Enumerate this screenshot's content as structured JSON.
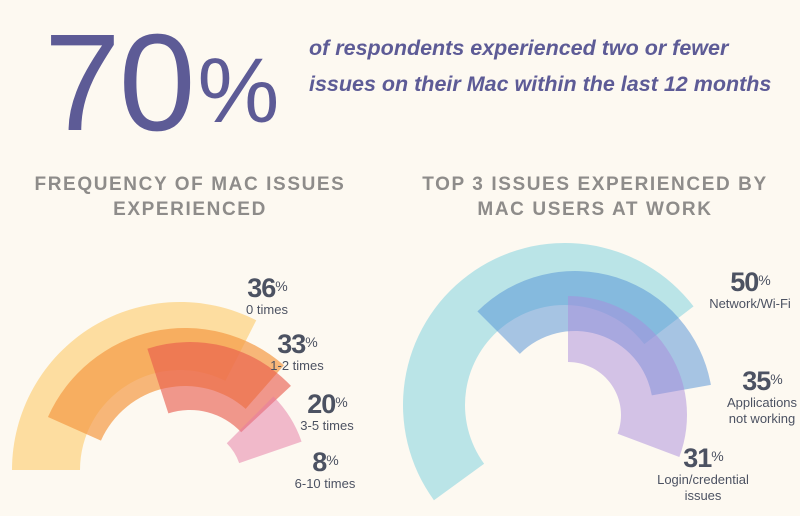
{
  "headline": {
    "value": "70",
    "unit": "%",
    "statement": "of respondents experienced two or fewer issues on their Mac within the last 12 months"
  },
  "colors": {
    "headline": "#5d5b96",
    "heading": "#8e8c8a",
    "label": "#4c5262",
    "background": "#fdf9f1"
  },
  "chart_data": [
    {
      "type": "radial-bar",
      "title": "FREQUENCY OF MAC ISSUES EXPERIENCED",
      "unit": "%",
      "categories": [
        "0 times",
        "1-2 times",
        "3-5 times",
        "6-10 times"
      ],
      "values": [
        36,
        33,
        20,
        8
      ],
      "colors": [
        "#fcd17e",
        "#f49a45",
        "#e85a4c",
        "#e57aa3"
      ]
    },
    {
      "type": "radial-bar",
      "title": "TOP 3 ISSUES EXPERIENCED BY MAC USERS AT WORK",
      "unit": "%",
      "categories": [
        "Network/Wi-Fi",
        "Applications not working",
        "Login/credential issues"
      ],
      "category_lines": [
        [
          "Network/Wi-Fi"
        ],
        [
          "Applications",
          "not working"
        ],
        [
          "Login/credential",
          "issues"
        ]
      ],
      "values": [
        50,
        35,
        31
      ],
      "colors": [
        "#9fdbe3",
        "#4f8fd6",
        "#a98cdc"
      ]
    }
  ]
}
